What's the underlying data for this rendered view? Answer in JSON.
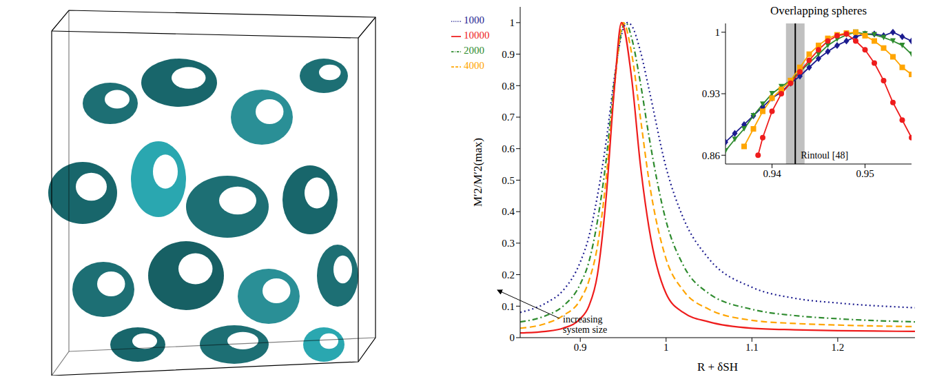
{
  "chart_data": [
    {
      "type": "line",
      "x_label": "R + δSH",
      "y_label": "M′2/M′2(max)",
      "xlim": [
        0.83,
        1.29
      ],
      "xticks": [
        0.9,
        1,
        1.1,
        1.2
      ],
      "ylim": [
        0,
        1.05
      ],
      "yticks": [
        0,
        0.1,
        0.2,
        0.3,
        0.4,
        0.5,
        0.6,
        0.7,
        0.8,
        0.9,
        1
      ],
      "legend": "top-left",
      "annotation": "increasing system size",
      "series": [
        {
          "name": "1000",
          "color": "#1c1c8f",
          "line_style": "dotted",
          "marker": "diamond",
          "x": [
            0.83,
            0.86,
            0.88,
            0.9,
            0.91,
            0.92,
            0.93,
            0.94,
            0.95,
            0.955,
            0.96,
            0.97,
            0.98,
            1.0,
            1.02,
            1.05,
            1.1,
            1.15,
            1.2,
            1.29
          ],
          "values": [
            0.08,
            0.11,
            0.15,
            0.24,
            0.32,
            0.45,
            0.62,
            0.83,
            0.98,
            1.0,
            0.99,
            0.91,
            0.79,
            0.54,
            0.38,
            0.25,
            0.16,
            0.125,
            0.11,
            0.095
          ]
        },
        {
          "name": "2000",
          "color": "#2e8b2e",
          "line_style": "dashdot",
          "marker": "triangle-down",
          "x": [
            0.83,
            0.86,
            0.88,
            0.9,
            0.91,
            0.92,
            0.93,
            0.94,
            0.95,
            0.953,
            0.96,
            0.97,
            0.98,
            1.0,
            1.02,
            1.05,
            1.1,
            1.15,
            1.2,
            1.29
          ],
          "values": [
            0.05,
            0.07,
            0.1,
            0.17,
            0.24,
            0.37,
            0.56,
            0.82,
            0.99,
            1.0,
            0.95,
            0.81,
            0.64,
            0.37,
            0.23,
            0.14,
            0.09,
            0.07,
            0.06,
            0.05
          ]
        },
        {
          "name": "4000",
          "color": "#ffa500",
          "line_style": "dashed",
          "marker": "square",
          "x": [
            0.83,
            0.86,
            0.88,
            0.9,
            0.91,
            0.92,
            0.93,
            0.94,
            0.95,
            0.96,
            0.97,
            0.98,
            1.0,
            1.02,
            1.05,
            1.1,
            1.15,
            1.2,
            1.29
          ],
          "values": [
            0.03,
            0.045,
            0.07,
            0.12,
            0.18,
            0.29,
            0.5,
            0.8,
            1.0,
            0.9,
            0.7,
            0.5,
            0.25,
            0.15,
            0.09,
            0.055,
            0.045,
            0.04,
            0.035
          ]
        },
        {
          "name": "10000",
          "color": "#ee1c1c",
          "line_style": "solid",
          "marker": "circle",
          "x": [
            0.83,
            0.86,
            0.88,
            0.9,
            0.91,
            0.92,
            0.93,
            0.94,
            0.948,
            0.96,
            0.97,
            0.98,
            1.0,
            1.02,
            1.05,
            1.1,
            1.15,
            1.2,
            1.29
          ],
          "values": [
            0.015,
            0.02,
            0.03,
            0.06,
            0.1,
            0.2,
            0.44,
            0.8,
            1.0,
            0.82,
            0.55,
            0.35,
            0.14,
            0.08,
            0.05,
            0.03,
            0.025,
            0.022,
            0.02
          ]
        }
      ]
    },
    {
      "type": "line",
      "title": "Overlapping spheres",
      "xlim": [
        0.935,
        0.955
      ],
      "xticks": [
        0.94,
        0.95
      ],
      "ylim": [
        0.85,
        1.01
      ],
      "yticks": [
        0.86,
        0.93,
        1
      ],
      "reference": {
        "x": 0.9425,
        "band": [
          0.9415,
          0.9435
        ],
        "label": "Rintoul [48]"
      },
      "series": [
        {
          "name": "1000",
          "color": "#1c1c8f",
          "marker": "diamond",
          "x": [
            0.935,
            0.936,
            0.937,
            0.938,
            0.939,
            0.94,
            0.941,
            0.942,
            0.943,
            0.944,
            0.945,
            0.946,
            0.947,
            0.948,
            0.949,
            0.95,
            0.951,
            0.952,
            0.953,
            0.954,
            0.955
          ],
          "values": [
            0.875,
            0.885,
            0.895,
            0.905,
            0.915,
            0.925,
            0.932,
            0.942,
            0.95,
            0.96,
            0.97,
            0.978,
            0.985,
            0.99,
            0.995,
            0.998,
            0.998,
            0.996,
            1.0,
            0.995,
            0.99
          ]
        },
        {
          "name": "2000",
          "color": "#2e8b2e",
          "marker": "triangle-down",
          "x": [
            0.935,
            0.936,
            0.937,
            0.938,
            0.939,
            0.94,
            0.941,
            0.942,
            0.943,
            0.944,
            0.945,
            0.946,
            0.947,
            0.948,
            0.949,
            0.95,
            0.951,
            0.952,
            0.953,
            0.954,
            0.955
          ],
          "values": [
            0.865,
            0.878,
            0.89,
            0.905,
            0.918,
            0.93,
            0.938,
            0.945,
            0.955,
            0.965,
            0.975,
            0.985,
            0.992,
            0.997,
            1.0,
            0.998,
            0.997,
            0.994,
            0.99,
            0.985,
            0.975
          ]
        },
        {
          "name": "4000",
          "color": "#ffa500",
          "marker": "square",
          "x": [
            0.937,
            0.938,
            0.939,
            0.94,
            0.941,
            0.942,
            0.943,
            0.944,
            0.945,
            0.946,
            0.947,
            0.948,
            0.949,
            0.95,
            0.951,
            0.952,
            0.953,
            0.954,
            0.955
          ],
          "values": [
            0.87,
            0.89,
            0.91,
            0.925,
            0.935,
            0.945,
            0.96,
            0.975,
            0.985,
            0.993,
            0.997,
            0.999,
            1.0,
            0.996,
            0.99,
            0.982,
            0.972,
            0.96,
            0.952
          ]
        },
        {
          "name": "10000",
          "color": "#ee1c1c",
          "marker": "circle",
          "x": [
            0.9385,
            0.939,
            0.94,
            0.941,
            0.942,
            0.943,
            0.944,
            0.945,
            0.946,
            0.947,
            0.948,
            0.949,
            0.95,
            0.951,
            0.952,
            0.953,
            0.954,
            0.955
          ],
          "values": [
            0.86,
            0.88,
            0.91,
            0.93,
            0.942,
            0.955,
            0.968,
            0.98,
            0.99,
            0.996,
            0.998,
            0.99,
            0.98,
            0.965,
            0.945,
            0.92,
            0.9,
            0.88
          ]
        }
      ]
    }
  ]
}
